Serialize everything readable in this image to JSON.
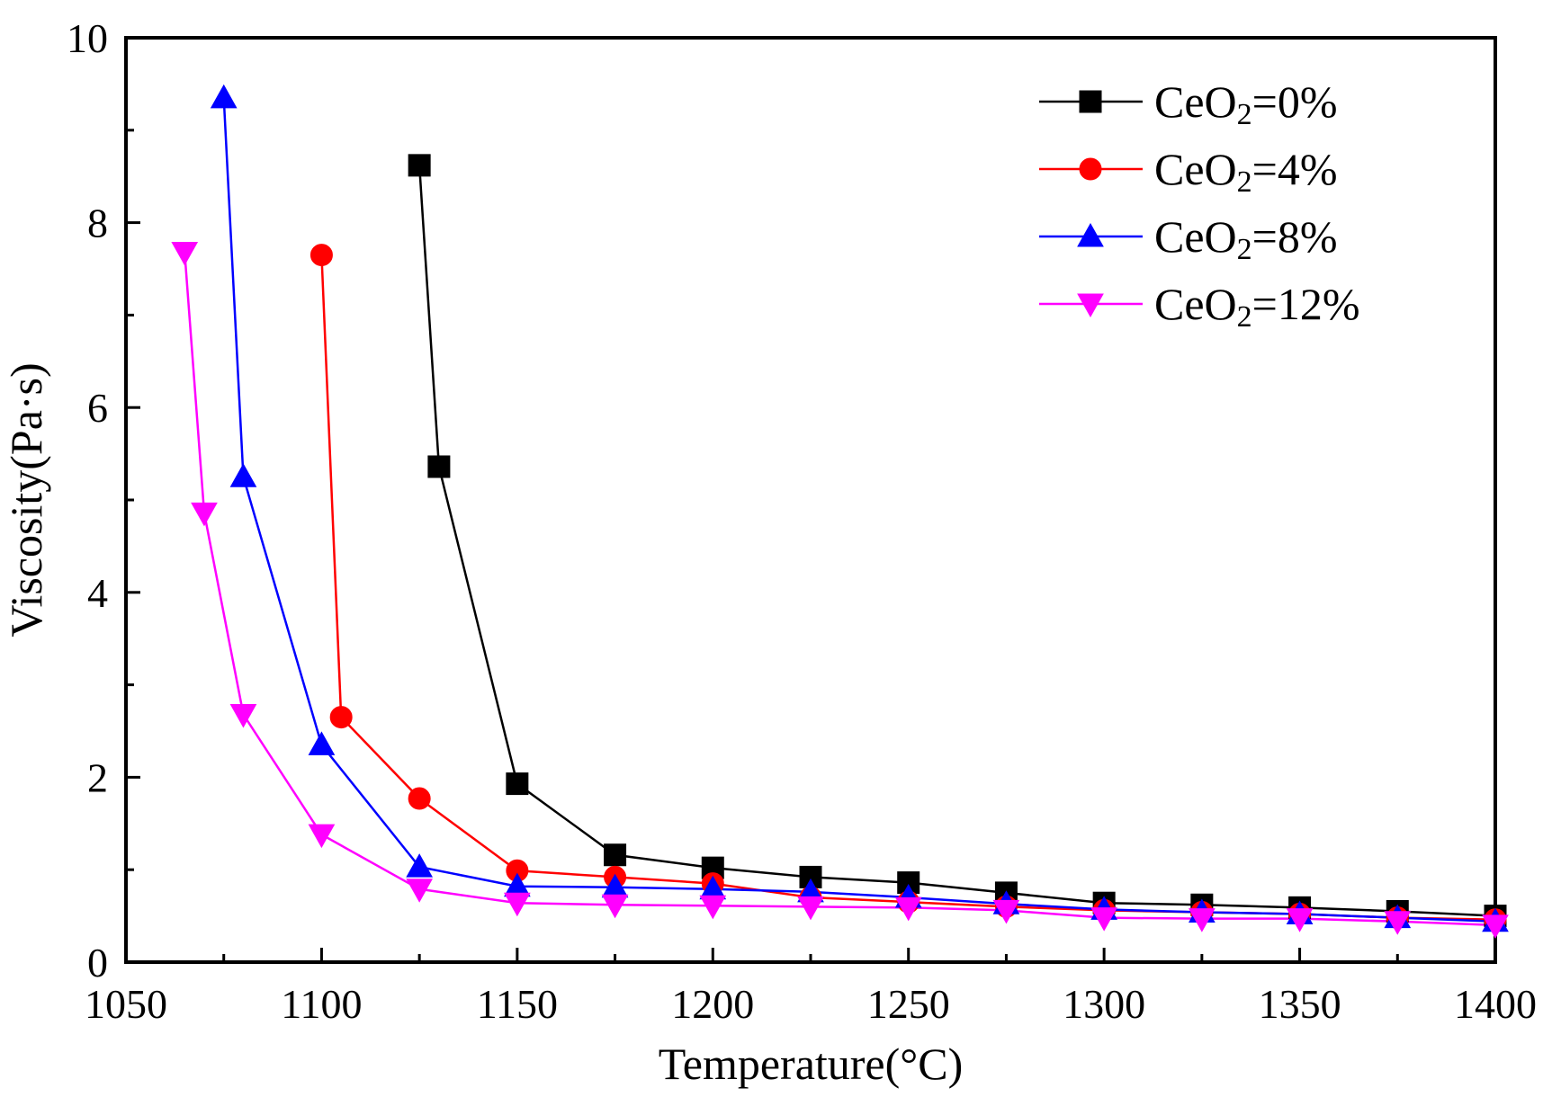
{
  "chart_data": {
    "type": "line",
    "title": "",
    "xlabel": "Temperature(°C)",
    "ylabel": "Viscosity(Pa·s)",
    "xlim": [
      1050,
      1400
    ],
    "ylim": [
      0,
      10
    ],
    "xticks": [
      1050,
      1100,
      1150,
      1200,
      1250,
      1300,
      1350,
      1400
    ],
    "yticks": [
      0,
      2,
      4,
      6,
      8,
      10
    ],
    "grid": false,
    "legend_position": "top-right",
    "series": [
      {
        "name": "CeO2=0%",
        "legend": {
          "base": "CeO",
          "sub": "2",
          "rest": "=0%"
        },
        "color": "#000000",
        "marker": "square",
        "x": [
          1125,
          1130,
          1150,
          1175,
          1200,
          1225,
          1250,
          1275,
          1300,
          1325,
          1350,
          1375,
          1400
        ],
        "y": [
          8.62,
          5.36,
          1.93,
          1.16,
          1.02,
          0.92,
          0.86,
          0.75,
          0.64,
          0.62,
          0.59,
          0.55,
          0.5
        ]
      },
      {
        "name": "CeO2=4%",
        "legend": {
          "base": "CeO",
          "sub": "2",
          "rest": "=4%"
        },
        "color": "#ff0000",
        "marker": "circle",
        "x": [
          1100,
          1105,
          1125,
          1150,
          1175,
          1200,
          1225,
          1250,
          1275,
          1300,
          1325,
          1350,
          1375,
          1400
        ],
        "y": [
          7.65,
          2.65,
          1.77,
          0.99,
          0.92,
          0.85,
          0.7,
          0.65,
          0.6,
          0.56,
          0.54,
          0.52,
          0.48,
          0.46
        ]
      },
      {
        "name": "CeO2=8%",
        "legend": {
          "base": "CeO",
          "sub": "2",
          "rest": "=8%"
        },
        "color": "#0000ff",
        "marker": "triangle-up",
        "x": [
          1075,
          1080,
          1100,
          1125,
          1150,
          1175,
          1200,
          1225,
          1250,
          1275,
          1300,
          1325,
          1350,
          1375,
          1400
        ],
        "y": [
          9.35,
          5.25,
          2.35,
          1.03,
          0.82,
          0.81,
          0.79,
          0.76,
          0.7,
          0.63,
          0.57,
          0.54,
          0.52,
          0.48,
          0.44
        ]
      },
      {
        "name": "CeO2=12%",
        "legend": {
          "base": "CeO",
          "sub": "2",
          "rest": "=12%"
        },
        "color": "#ff00ff",
        "marker": "triangle-down",
        "x": [
          1065,
          1070,
          1080,
          1100,
          1125,
          1150,
          1175,
          1200,
          1225,
          1250,
          1275,
          1300,
          1325,
          1350,
          1375,
          1400
        ],
        "y": [
          7.68,
          4.86,
          2.68,
          1.38,
          0.79,
          0.64,
          0.62,
          0.61,
          0.6,
          0.59,
          0.56,
          0.48,
          0.47,
          0.47,
          0.44,
          0.4
        ]
      }
    ]
  }
}
